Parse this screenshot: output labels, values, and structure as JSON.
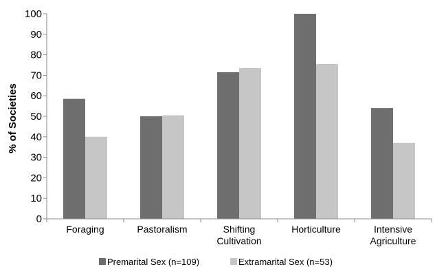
{
  "chart_data": {
    "type": "bar",
    "ylabel": "% of Societies",
    "xlabel": "",
    "ylim": [
      0,
      100
    ],
    "yticks": [
      0,
      10,
      20,
      30,
      40,
      50,
      60,
      70,
      80,
      90,
      100
    ],
    "categories": [
      [
        "Foraging"
      ],
      [
        "Pastoralism"
      ],
      [
        "Shifting",
        "Cultivation"
      ],
      [
        "Horticulture"
      ],
      [
        "Intensive",
        "Agriculture"
      ]
    ],
    "series": [
      {
        "name": "Premarital Sex (n=109)",
        "values": [
          58.5,
          50,
          71.5,
          100,
          54
        ],
        "color": "#6e6e6e"
      },
      {
        "name": "Extramarital Sex (n=53)",
        "values": [
          40,
          50.5,
          73.5,
          75.5,
          37
        ],
        "color": "#c6c6c6"
      }
    ],
    "grid": false,
    "legend": "bottom"
  }
}
